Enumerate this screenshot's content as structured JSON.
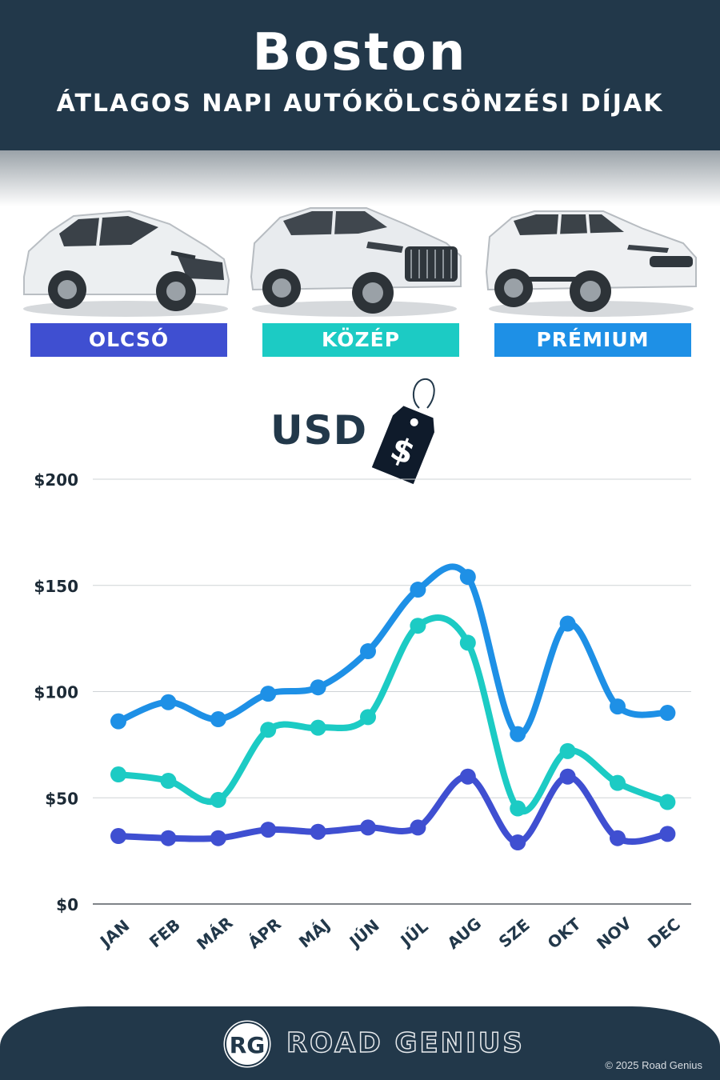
{
  "header": {
    "title": "Boston",
    "subtitle": "ÁTLAGOS NAPI AUTÓKÖLCSÖNZÉSI DÍJAK"
  },
  "categories": [
    {
      "label": "OLCSÓ",
      "color": "#3f4fd1"
    },
    {
      "label": "KÖZÉP",
      "color": "#1ccbc4"
    },
    {
      "label": "PRÉMIUM",
      "color": "#1e90e6"
    }
  ],
  "currency": {
    "label": "USD",
    "tag_symbol": "$"
  },
  "chart_data": {
    "type": "line",
    "title": "",
    "xlabel": "",
    "ylabel": "",
    "categories": [
      "JAN",
      "FEB",
      "MÁR",
      "ÁPR",
      "MÁJ",
      "JÚN",
      "JÚL",
      "AUG",
      "SZE",
      "OKT",
      "NOV",
      "DEC"
    ],
    "y_ticks": [
      "$0",
      "$50",
      "$100",
      "$150",
      "$200"
    ],
    "ylim": [
      0,
      200
    ],
    "grid": true,
    "series": [
      {
        "name": "PRÉMIUM",
        "color": "#1e90e6",
        "values": [
          86,
          95,
          87,
          99,
          102,
          119,
          148,
          154,
          80,
          132,
          93,
          90
        ]
      },
      {
        "name": "KÖZÉP",
        "color": "#1ccbc4",
        "values": [
          61,
          58,
          49,
          82,
          83,
          88,
          131,
          123,
          45,
          72,
          57,
          48
        ]
      },
      {
        "name": "OLCSÓ",
        "color": "#3f4fd1",
        "values": [
          32,
          31,
          31,
          35,
          34,
          36,
          36,
          60,
          29,
          60,
          31,
          33
        ]
      }
    ]
  },
  "footer": {
    "logo_text": "RG",
    "brand": "ROAD GENIUS",
    "copyright": "© 2025 Road Genius"
  }
}
